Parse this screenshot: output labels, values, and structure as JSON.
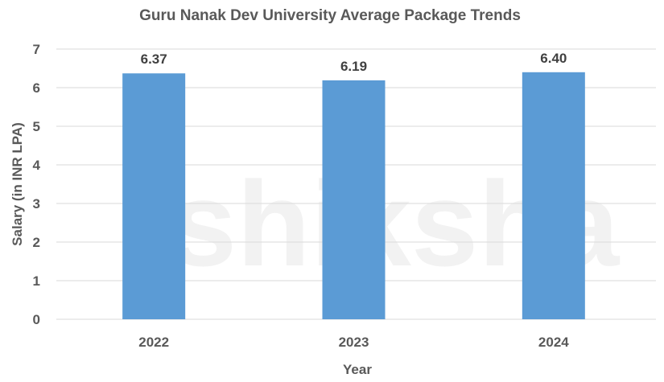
{
  "watermark": "shiksha",
  "chart_data": {
    "type": "bar",
    "title": "Guru Nanak Dev University Average Package Trends",
    "xlabel": "Year",
    "ylabel": "Salary (in INR LPA)",
    "categories": [
      "2022",
      "2023",
      "2024"
    ],
    "values": [
      6.37,
      6.19,
      6.4
    ],
    "data_labels": [
      "6.37",
      "6.19",
      "6.40"
    ],
    "ylim": [
      0,
      7
    ],
    "yticks": [
      "0",
      "1",
      "2",
      "3",
      "4",
      "5",
      "6",
      "7"
    ],
    "grid": true,
    "legend": "none",
    "colors": {
      "bar": "#5B9BD5",
      "text": "#595959",
      "grid": "#D9D9D9"
    }
  }
}
